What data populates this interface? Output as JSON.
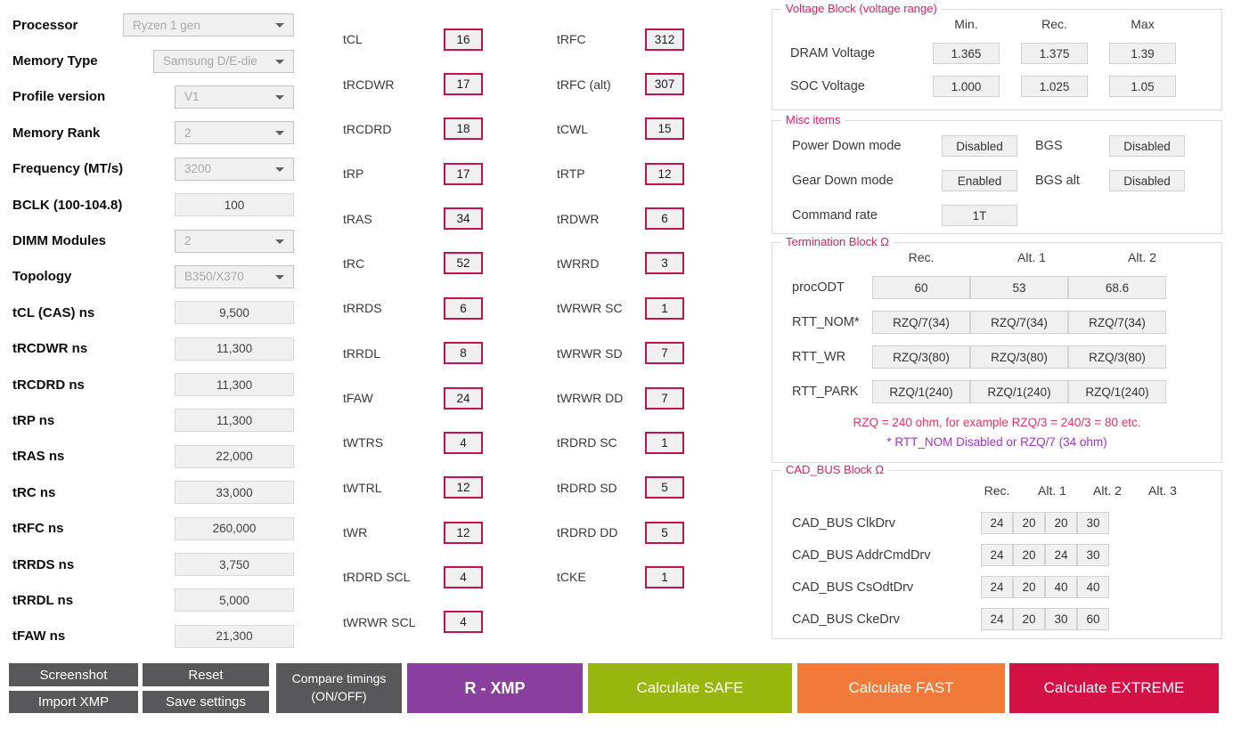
{
  "left_panel": {
    "rows": [
      {
        "label": "Processor",
        "type": "dropdown",
        "value": "Ryzen 1 gen"
      },
      {
        "label": "Memory Type",
        "type": "dropdown",
        "value": "Samsung D/E-die"
      },
      {
        "label": "Profile version",
        "type": "dropdown",
        "value": "V1"
      },
      {
        "label": "Memory Rank",
        "type": "dropdown",
        "value": "2"
      },
      {
        "label": "Frequency (MT/s)",
        "type": "dropdown",
        "value": "3200"
      },
      {
        "label": "BCLK (100-104.8)",
        "type": "input",
        "value": "100"
      },
      {
        "label": "DIMM Modules",
        "type": "dropdown",
        "value": "2"
      },
      {
        "label": "Topology",
        "type": "dropdown",
        "value": "B350/X370"
      },
      {
        "label": "tCL (CAS) ns",
        "type": "input",
        "value": "9,500"
      },
      {
        "label": "tRCDWR ns",
        "type": "input",
        "value": "11,300"
      },
      {
        "label": "tRCDRD ns",
        "type": "input",
        "value": "11,300"
      },
      {
        "label": "tRP ns",
        "type": "input",
        "value": "11,300"
      },
      {
        "label": "tRAS ns",
        "type": "input",
        "value": "22,000"
      },
      {
        "label": "tRC ns",
        "type": "input",
        "value": "33,000"
      },
      {
        "label": "tRFC ns",
        "type": "input",
        "value": "260,000"
      },
      {
        "label": "tRRDS ns",
        "type": "input",
        "value": "3,750"
      },
      {
        "label": "tRRDL ns",
        "type": "input",
        "value": "5,000"
      },
      {
        "label": "tFAW ns",
        "type": "input",
        "value": "21,300"
      }
    ]
  },
  "timings_col1": [
    {
      "label": "tCL",
      "value": "16"
    },
    {
      "label": "tRCDWR",
      "value": "17"
    },
    {
      "label": "tRCDRD",
      "value": "18"
    },
    {
      "label": "tRP",
      "value": "17"
    },
    {
      "label": "tRAS",
      "value": "34"
    },
    {
      "label": "tRC",
      "value": "52"
    },
    {
      "label": "tRRDS",
      "value": "6"
    },
    {
      "label": "tRRDL",
      "value": "8"
    },
    {
      "label": "tFAW",
      "value": "24"
    },
    {
      "label": "tWTRS",
      "value": "4"
    },
    {
      "label": "tWTRL",
      "value": "12"
    },
    {
      "label": "tWR",
      "value": "12"
    },
    {
      "label": "tRDRD SCL",
      "value": "4"
    },
    {
      "label": "tWRWR SCL",
      "value": "4"
    }
  ],
  "timings_col2": [
    {
      "label": "tRFC",
      "value": "312"
    },
    {
      "label": "tRFC (alt)",
      "value": "307"
    },
    {
      "label": "tCWL",
      "value": "15"
    },
    {
      "label": "tRTP",
      "value": "12"
    },
    {
      "label": "tRDWR",
      "value": "6"
    },
    {
      "label": "tWRRD",
      "value": "3"
    },
    {
      "label": "tWRWR SC",
      "value": "1"
    },
    {
      "label": "tWRWR SD",
      "value": "7"
    },
    {
      "label": "tWRWR DD",
      "value": "7"
    },
    {
      "label": "tRDRD SC",
      "value": "1"
    },
    {
      "label": "tRDRD SD",
      "value": "5"
    },
    {
      "label": "tRDRD DD",
      "value": "5"
    },
    {
      "label": "tCKE",
      "value": "1"
    }
  ],
  "voltage_block": {
    "title": "Voltage Block (voltage range)",
    "headers": [
      "Min.",
      "Rec.",
      "Max"
    ],
    "rows": [
      {
        "label": "DRAM Voltage",
        "values": [
          "1.365",
          "1.375",
          "1.39"
        ]
      },
      {
        "label": "SOC Voltage",
        "values": [
          "1.000",
          "1.025",
          "1.05"
        ]
      }
    ]
  },
  "misc_items": {
    "title": "Misc items",
    "rows": [
      {
        "label": "Power Down mode",
        "value": "Disabled",
        "label2": "BGS",
        "value2": "Disabled"
      },
      {
        "label": "Gear Down mode",
        "value": "Enabled",
        "label2": "BGS alt",
        "value2": "Disabled"
      },
      {
        "label": "Command rate",
        "value": "1T"
      }
    ]
  },
  "termination_block": {
    "title": "Termination Block Ω",
    "headers": [
      "Rec.",
      "Alt. 1",
      "Alt. 2"
    ],
    "rows": [
      {
        "label": "procODT",
        "values": [
          "60",
          "53",
          "68.6"
        ]
      },
      {
        "label": "RTT_NOM*",
        "values": [
          "RZQ/7(34)",
          "RZQ/7(34)",
          "RZQ/7(34)"
        ]
      },
      {
        "label": "RTT_WR",
        "values": [
          "RZQ/3(80)",
          "RZQ/3(80)",
          "RZQ/3(80)"
        ]
      },
      {
        "label": "RTT_PARK",
        "values": [
          "RZQ/1(240)",
          "RZQ/1(240)",
          "RZQ/1(240)"
        ]
      }
    ],
    "note_red": "RZQ = 240 ohm, for example RZQ/3 = 240/3 = 80 etc.",
    "note_purple": "* RTT_NOM Disabled or RZQ/7 (34 ohm)"
  },
  "cad_bus_block": {
    "title": "CAD_BUS Block Ω",
    "headers": [
      "Rec.",
      "Alt. 1",
      "Alt. 2",
      "Alt. 3"
    ],
    "rows": [
      {
        "label": "CAD_BUS ClkDrv",
        "values": [
          "24",
          "20",
          "20",
          "30"
        ]
      },
      {
        "label": "CAD_BUS AddrCmdDrv",
        "values": [
          "24",
          "20",
          "24",
          "30"
        ]
      },
      {
        "label": "CAD_BUS CsOdtDrv",
        "values": [
          "24",
          "20",
          "40",
          "40"
        ]
      },
      {
        "label": "CAD_BUS CkeDrv",
        "values": [
          "24",
          "20",
          "30",
          "60"
        ]
      }
    ]
  },
  "footer": {
    "screenshot": "Screenshot",
    "import_xmp": "Import XMP",
    "reset": "Reset",
    "save_settings": "Save settings",
    "compare_line1": "Compare timings",
    "compare_line2": "(ON/OFF)",
    "r_xmp": "R - XMP",
    "calc_safe": "Calculate SAFE",
    "calc_fast": "Calculate FAST",
    "calc_extreme": "Calculate EXTREME"
  },
  "colors": {
    "timing_border": "#c1134e",
    "group_title": "#ec1a5e",
    "note_red": "#ea3360",
    "note_purple": "#a233cc",
    "btn_dark": "#58585a",
    "btn_purple": "#8a3f9e",
    "btn_green": "#98b70e",
    "btn_orange": "#f1793a",
    "btn_crimson": "#d31145"
  }
}
